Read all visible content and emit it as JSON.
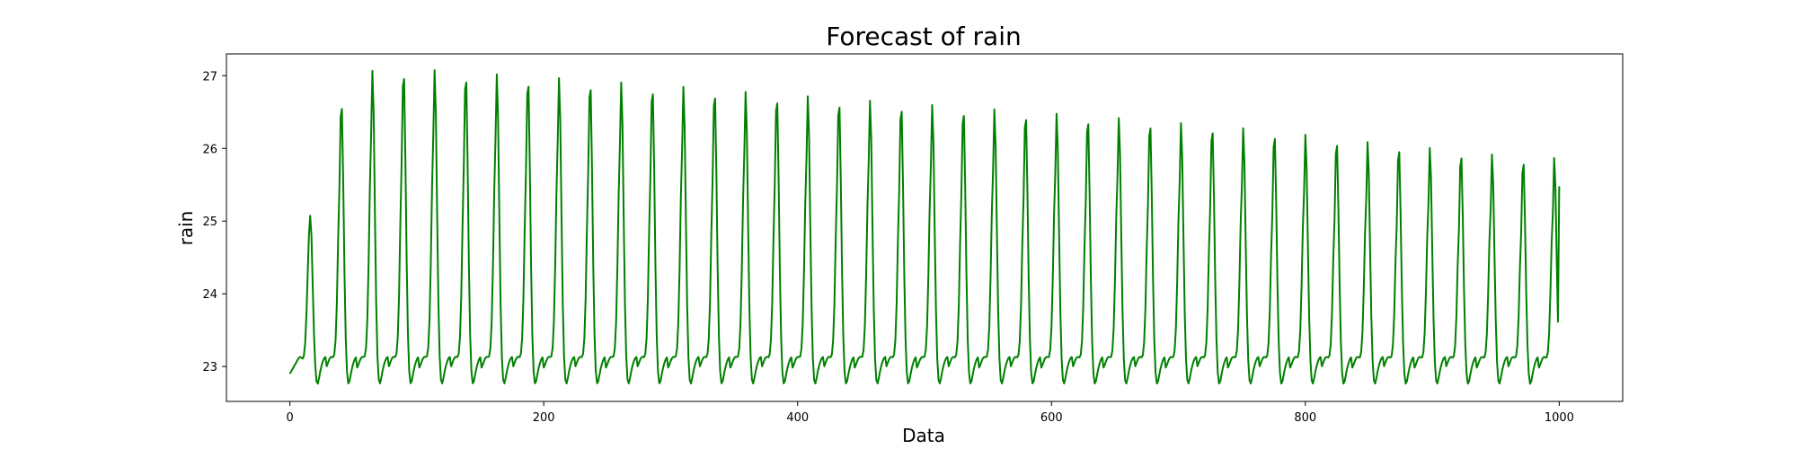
{
  "chart_data": {
    "type": "line",
    "title": "Forecast of rain",
    "xlabel": "Data",
    "ylabel": "rain",
    "xlim": [
      -50,
      1050
    ],
    "ylim": [
      22.52,
      27.3
    ],
    "x_ticks": [
      0,
      200,
      400,
      600,
      800,
      1000
    ],
    "y_ticks": [
      23,
      24,
      25,
      26,
      27
    ],
    "grid": false,
    "color": "#008000",
    "x_start": 0,
    "x_end": 1000,
    "x_step": 2,
    "baseline": 23.05,
    "period": 24.5,
    "first_peak_x": 16,
    "last_x_value": 25.48,
    "peaks": [
      {
        "x": 16,
        "y": 25.05
      },
      {
        "x": 40,
        "y": 26.65
      },
      {
        "x": 64,
        "y": 27.05
      },
      {
        "x": 88,
        "y": 27.08
      },
      {
        "x": 113,
        "y": 27.06
      },
      {
        "x": 137,
        "y": 27.03
      },
      {
        "x": 162,
        "y": 27.0
      },
      {
        "x": 186,
        "y": 26.97
      },
      {
        "x": 211,
        "y": 26.95
      },
      {
        "x": 235,
        "y": 26.92
      },
      {
        "x": 260,
        "y": 26.89
      },
      {
        "x": 284,
        "y": 26.86
      },
      {
        "x": 309,
        "y": 26.83
      },
      {
        "x": 333,
        "y": 26.8
      },
      {
        "x": 358,
        "y": 26.76
      },
      {
        "x": 382,
        "y": 26.73
      },
      {
        "x": 407,
        "y": 26.7
      },
      {
        "x": 431,
        "y": 26.67
      },
      {
        "x": 456,
        "y": 26.64
      },
      {
        "x": 480,
        "y": 26.61
      },
      {
        "x": 505,
        "y": 26.58
      },
      {
        "x": 529,
        "y": 26.55
      },
      {
        "x": 554,
        "y": 26.52
      },
      {
        "x": 578,
        "y": 26.49
      },
      {
        "x": 603,
        "y": 26.46
      },
      {
        "x": 627,
        "y": 26.43
      },
      {
        "x": 652,
        "y": 26.4
      },
      {
        "x": 676,
        "y": 26.37
      },
      {
        "x": 701,
        "y": 26.33
      },
      {
        "x": 725,
        "y": 26.3
      },
      {
        "x": 750,
        "y": 26.26
      },
      {
        "x": 774,
        "y": 26.22
      },
      {
        "x": 799,
        "y": 26.17
      },
      {
        "x": 823,
        "y": 26.12
      },
      {
        "x": 848,
        "y": 26.07
      },
      {
        "x": 872,
        "y": 26.03
      },
      {
        "x": 897,
        "y": 25.99
      },
      {
        "x": 921,
        "y": 25.94
      },
      {
        "x": 946,
        "y": 25.9
      },
      {
        "x": 970,
        "y": 25.85
      }
    ]
  }
}
